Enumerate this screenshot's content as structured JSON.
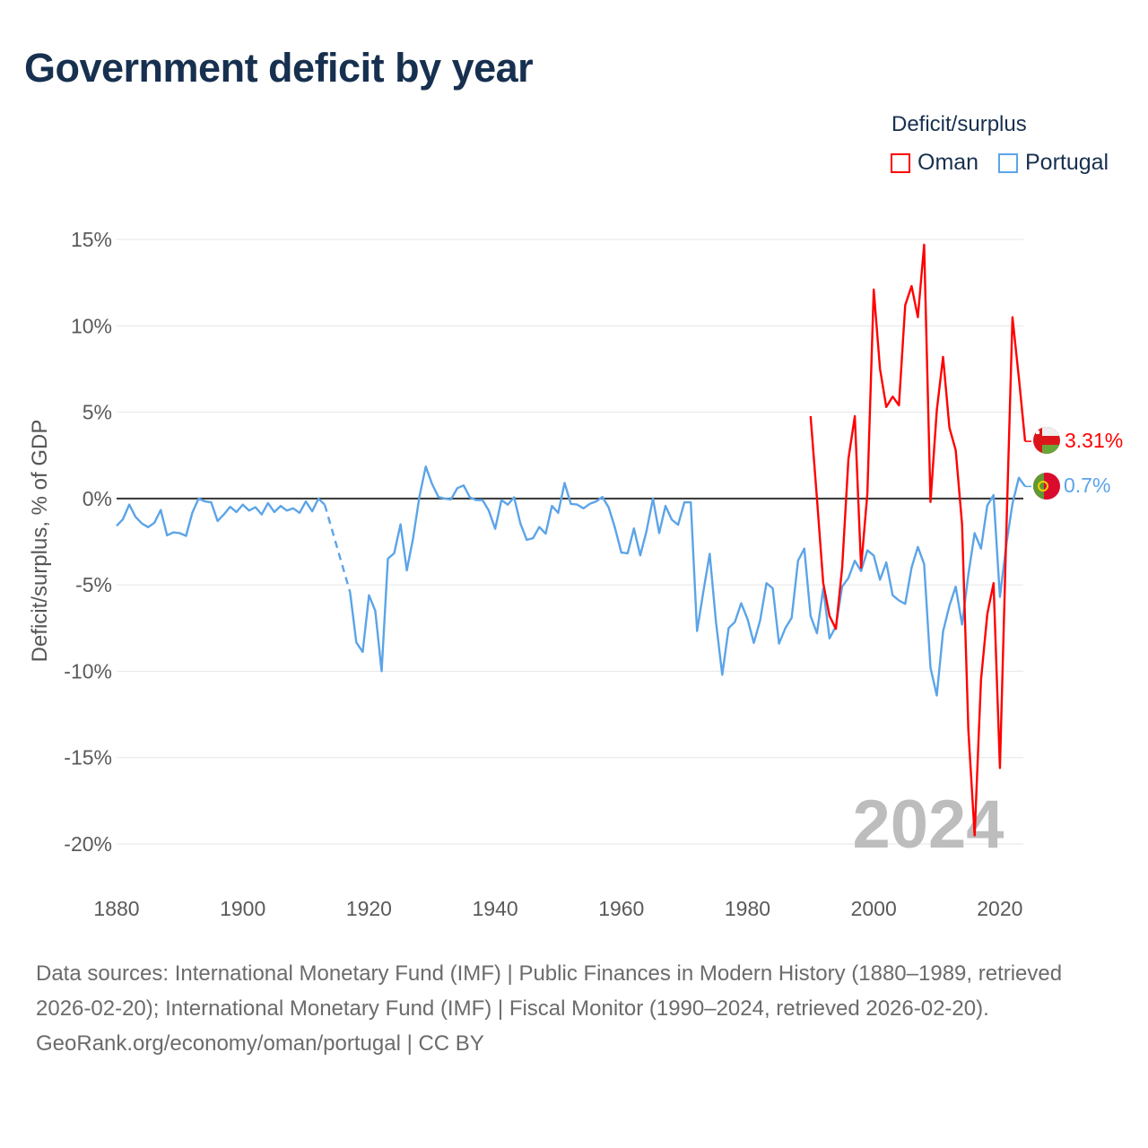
{
  "title": "Government deficit by year",
  "legend": {
    "title": "Deficit/surplus",
    "items": [
      {
        "name": "Oman",
        "color": "#ff0000"
      },
      {
        "name": "Portugal",
        "color": "#5ba4e8"
      }
    ]
  },
  "watermark_year": "2024",
  "end_labels": {
    "oman": "3.31%",
    "portugal": "0.7%"
  },
  "footer": {
    "sources": "Data sources: International Monetary Fund (IMF) | Public Finances in Modern History (1880–1989, retrieved 2026-02-20); International Monetary Fund (IMF) | Fiscal Monitor (1990–2024, retrieved 2026-02-20).",
    "credit": "GeoRank.org/economy/oman/portugal | CC BY"
  },
  "chart_data": {
    "type": "line",
    "title": "Government deficit by year",
    "xlabel": "",
    "ylabel": "Deficit/surplus, % of GDP",
    "xlim": [
      1880,
      2024
    ],
    "ylim": [
      -20,
      15
    ],
    "xticks": [
      1880,
      1900,
      1920,
      1940,
      1960,
      1980,
      2000,
      2020
    ],
    "xtick_labels": [
      "1880",
      "1900",
      "1920",
      "1940",
      "1960",
      "1980",
      "2000",
      "2020"
    ],
    "yticks": [
      15,
      10,
      5,
      0,
      -5,
      -10,
      -15,
      -20
    ],
    "ytick_labels": [
      "15%",
      "10%",
      "5%",
      "0%",
      "-5%",
      "-10%",
      "-15%",
      "-20%"
    ],
    "grid": true,
    "legend_position": "top-right",
    "series": [
      {
        "name": "Oman",
        "color": "#ff0000",
        "start_year": 1990,
        "values": [
          4.77,
          0.0,
          -4.9,
          -6.8,
          -7.55,
          -4.0,
          2.3,
          4.77,
          -4.0,
          0.3,
          12.1,
          7.5,
          5.3,
          5.9,
          5.4,
          11.2,
          12.3,
          10.5,
          14.7,
          -0.2,
          5.1,
          8.2,
          4.1,
          2.8,
          -1.5,
          -13.4,
          -19.5,
          -10.5,
          -6.7,
          -4.9,
          -15.6,
          -2.2,
          10.5,
          7.0,
          3.31
        ]
      },
      {
        "name": "Portugal",
        "color": "#5ba4e8",
        "start_year": 1880,
        "values": [
          -1.58,
          -1.2,
          -0.35,
          -1.06,
          -1.44,
          -1.66,
          -1.4,
          -0.66,
          -2.13,
          -1.96,
          -2.0,
          -2.16,
          -0.83,
          0.0,
          -0.17,
          -0.22,
          -1.3,
          -0.92,
          -0.48,
          -0.78,
          -0.35,
          -0.7,
          -0.5,
          -0.92,
          -0.26,
          -0.78,
          -0.43,
          -0.7,
          -0.57,
          -0.83,
          -0.17,
          -0.74,
          0.0,
          -0.36,
          null,
          null,
          null,
          -5.42,
          -8.33,
          -8.88,
          -5.6,
          -6.5,
          -10.0,
          -3.48,
          -3.17,
          -1.49,
          -4.16,
          -2.29,
          0.12,
          1.85,
          0.85,
          0.09,
          0.0,
          -0.05,
          0.6,
          0.76,
          0.07,
          -0.09,
          -0.09,
          -0.7,
          -1.75,
          -0.09,
          -0.35,
          0.07,
          -1.44,
          -2.39,
          -2.3,
          -1.65,
          -2.04,
          -0.43,
          -0.83,
          0.9,
          -0.31,
          -0.35,
          -0.57,
          -0.31,
          -0.17,
          0.09,
          -0.52,
          -1.7,
          -3.13,
          -3.17,
          -1.73,
          -3.29,
          -1.87,
          0.0,
          -2.0,
          -0.43,
          -1.23,
          -1.52,
          -0.22,
          -0.22,
          -7.67,
          -5.4,
          -3.2,
          -7.15,
          -10.2,
          -7.5,
          -7.15,
          -6.06,
          -6.98,
          -8.36,
          -7.06,
          -4.9,
          -5.2,
          -8.4,
          -7.5,
          -6.9,
          -3.6,
          -2.9,
          -6.8,
          -7.8,
          -5.2,
          -8.1,
          -7.4,
          -5.1,
          -4.6,
          -3.6,
          -4.2,
          -3.0,
          -3.3,
          -4.7,
          -3.7,
          -5.6,
          -5.9,
          -6.1,
          -4.0,
          -2.8,
          -3.8,
          -9.8,
          -11.4,
          -7.7,
          -6.2,
          -5.1,
          -7.3,
          -4.4,
          -2.0,
          -2.9,
          -0.4,
          0.2,
          -5.7,
          -2.7,
          -0.3,
          1.2,
          0.7
        ]
      }
    ]
  }
}
